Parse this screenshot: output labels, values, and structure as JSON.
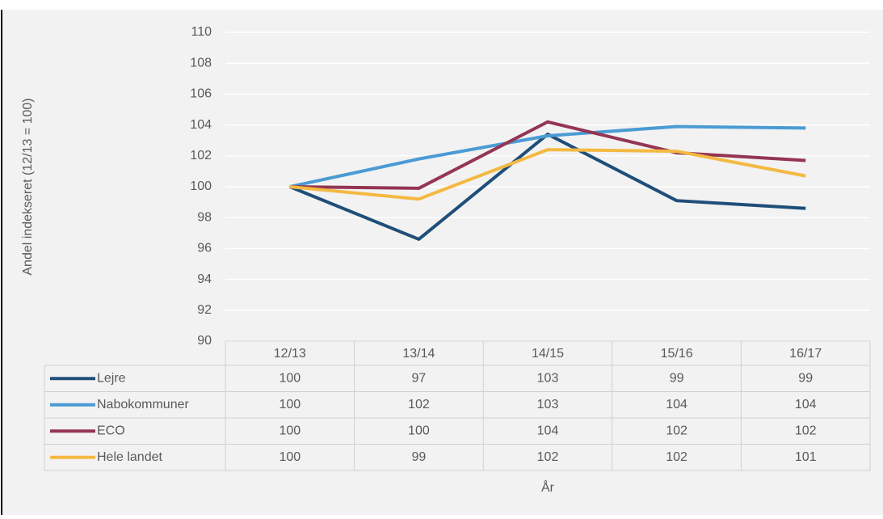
{
  "chart_data": {
    "type": "line",
    "y_label": "Andel indekseret  (12/13 = 100)",
    "x_label": "År",
    "categories": [
      "12/13",
      "13/14",
      "14/15",
      "15/16",
      "16/17"
    ],
    "series": [
      {
        "name": "Lejre",
        "color": "#1f4e79",
        "values": [
          100,
          96.6,
          103.4,
          99.1,
          98.6
        ],
        "value_labels": [
          "100",
          "97",
          "103",
          "99",
          "99"
        ]
      },
      {
        "name": "Nabokommuner",
        "color": "#4a9bd4",
        "values": [
          100,
          101.8,
          103.3,
          103.9,
          103.8
        ],
        "value_labels": [
          "100",
          "102",
          "103",
          "104",
          "104"
        ]
      },
      {
        "name": "ECO",
        "color": "#943553",
        "values": [
          100,
          99.9,
          104.2,
          102.2,
          101.7
        ],
        "value_labels": [
          "100",
          "100",
          "104",
          "102",
          "102"
        ]
      },
      {
        "name": "Hele landet",
        "color": "#f4b942",
        "values": [
          100,
          99.2,
          102.4,
          102.3,
          100.7
        ],
        "value_labels": [
          "100",
          "99",
          "102",
          "102",
          "101"
        ]
      }
    ],
    "ylim": [
      90,
      110
    ],
    "yticks": [
      90,
      92,
      94,
      96,
      98,
      100,
      102,
      104,
      106,
      108,
      110
    ],
    "grid": true
  }
}
